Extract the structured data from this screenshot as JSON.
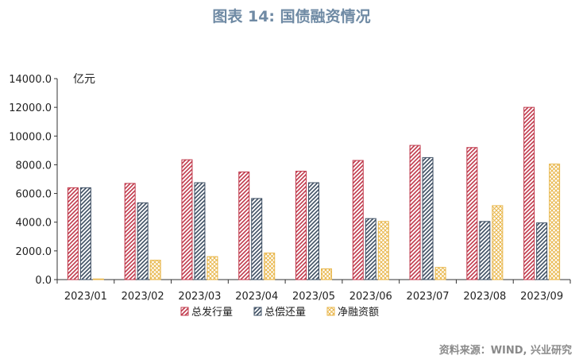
{
  "header": {
    "title": "图表 14: 国债融资情况"
  },
  "footer": {
    "source": "资料来源：WIND, 兴业研究"
  },
  "colors": {
    "issue": "#c0394b",
    "repay": "#3e4f63",
    "net": "#e8b64a",
    "axis": "#333333",
    "text": "#222222"
  },
  "chart_data": {
    "type": "bar",
    "unit_label": "亿元",
    "categories": [
      "2023/01",
      "2023/02",
      "2023/03",
      "2023/04",
      "2023/05",
      "2023/06",
      "2023/07",
      "2023/08",
      "2023/09"
    ],
    "y_ticks": [
      "0.0",
      "2000.0",
      "4000.0",
      "6000.0",
      "8000.0",
      "10000.0",
      "12000.0",
      "14000.0"
    ],
    "ylim": [
      0,
      14000
    ],
    "grid": false,
    "legend_position": "bottom",
    "series": [
      {
        "name": "总发行量",
        "key": "issue",
        "pattern": "diagonal",
        "values": [
          6400,
          6700,
          8350,
          7500,
          7550,
          8300,
          9350,
          9200,
          12000
        ]
      },
      {
        "name": "总偿还量",
        "key": "repay",
        "pattern": "diagonal",
        "values": [
          6400,
          5350,
          6750,
          5650,
          6750,
          4250,
          8500,
          4050,
          3950
        ]
      },
      {
        "name": "净融资额",
        "key": "net",
        "pattern": "crosshatch",
        "values": [
          30,
          1350,
          1600,
          1850,
          750,
          4050,
          850,
          5150,
          8050
        ]
      }
    ]
  }
}
